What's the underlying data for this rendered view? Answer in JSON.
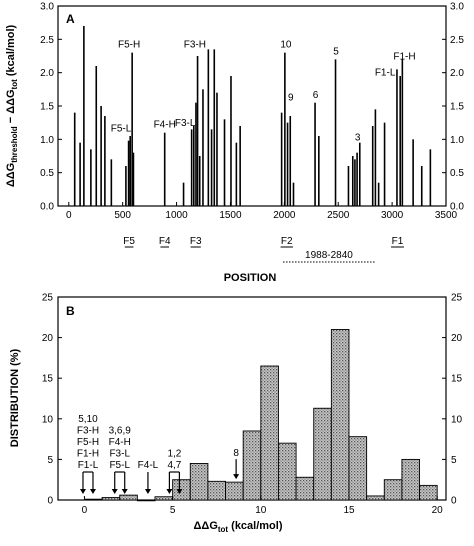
{
  "chart_data": [
    {
      "panel_label": "A",
      "type": "bar",
      "xlabel": "POSITION",
      "ylabel_parts": [
        "ΔΔG",
        "threshold",
        " − ΔΔG",
        "tot",
        " (kcal/mol)"
      ],
      "xlim": [
        -100,
        3500
      ],
      "ylim": [
        0,
        3.0
      ],
      "x_ticks": [
        "0",
        "500",
        "1000",
        "1500",
        "2000",
        "2500",
        "3000",
        "3500"
      ],
      "y_ticks": [
        "0.0",
        "0.5",
        "1.0",
        "1.5",
        "2.0",
        "2.5",
        "3.0"
      ],
      "grid": false,
      "points": [
        {
          "x": 55,
          "y": 1.4
        },
        {
          "x": 105,
          "y": 0.95
        },
        {
          "x": 140,
          "y": 2.7
        },
        {
          "x": 205,
          "y": 0.85
        },
        {
          "x": 255,
          "y": 2.1
        },
        {
          "x": 300,
          "y": 1.5
        },
        {
          "x": 335,
          "y": 1.35
        },
        {
          "x": 395,
          "y": 0.7
        },
        {
          "x": 530,
          "y": 0.6
        },
        {
          "x": 555,
          "y": 0.98
        },
        {
          "x": 570,
          "y": 1.05
        },
        {
          "x": 588,
          "y": 2.3
        },
        {
          "x": 600,
          "y": 0.8
        },
        {
          "x": 890,
          "y": 1.1
        },
        {
          "x": 1065,
          "y": 0.35
        },
        {
          "x": 1140,
          "y": 1.15
        },
        {
          "x": 1160,
          "y": 1.2
        },
        {
          "x": 1180,
          "y": 1.55
        },
        {
          "x": 1195,
          "y": 2.25
        },
        {
          "x": 1215,
          "y": 0.75
        },
        {
          "x": 1245,
          "y": 1.75
        },
        {
          "x": 1295,
          "y": 2.35
        },
        {
          "x": 1325,
          "y": 1.15
        },
        {
          "x": 1350,
          "y": 2.35
        },
        {
          "x": 1375,
          "y": 1.7
        },
        {
          "x": 1445,
          "y": 1.3
        },
        {
          "x": 1505,
          "y": 1.95
        },
        {
          "x": 1555,
          "y": 0.95
        },
        {
          "x": 1590,
          "y": 1.2
        },
        {
          "x": 1975,
          "y": 1.4
        },
        {
          "x": 2005,
          "y": 2.3
        },
        {
          "x": 2030,
          "y": 1.25
        },
        {
          "x": 2055,
          "y": 1.35
        },
        {
          "x": 2085,
          "y": 0.35
        },
        {
          "x": 2285,
          "y": 1.55
        },
        {
          "x": 2320,
          "y": 1.05
        },
        {
          "x": 2475,
          "y": 2.2
        },
        {
          "x": 2595,
          "y": 0.6
        },
        {
          "x": 2635,
          "y": 0.75
        },
        {
          "x": 2655,
          "y": 0.7
        },
        {
          "x": 2675,
          "y": 0.8
        },
        {
          "x": 2700,
          "y": 0.95
        },
        {
          "x": 2820,
          "y": 1.2
        },
        {
          "x": 2845,
          "y": 1.45
        },
        {
          "x": 2875,
          "y": 0.35
        },
        {
          "x": 2930,
          "y": 1.25
        },
        {
          "x": 3045,
          "y": 2.05
        },
        {
          "x": 3075,
          "y": 1.95
        },
        {
          "x": 3095,
          "y": 2.2
        },
        {
          "x": 3195,
          "y": 1.0
        },
        {
          "x": 3275,
          "y": 0.6
        },
        {
          "x": 3355,
          "y": 0.85
        }
      ],
      "annotations": [
        {
          "text": "F5-H",
          "x": 560,
          "y": 2.38
        },
        {
          "text": "F5-L",
          "x": 485,
          "y": 1.12
        },
        {
          "text": "F4-H",
          "x": 890,
          "y": 1.18
        },
        {
          "text": "F3-H",
          "x": 1170,
          "y": 2.38
        },
        {
          "text": "F3-L",
          "x": 1080,
          "y": 1.2
        },
        {
          "text": "10",
          "x": 2015,
          "y": 2.38
        },
        {
          "text": "9",
          "x": 2060,
          "y": 1.58
        },
        {
          "text": "6",
          "x": 2290,
          "y": 1.62
        },
        {
          "text": "5",
          "x": 2480,
          "y": 2.27
        },
        {
          "text": "3",
          "x": 2680,
          "y": 0.98
        },
        {
          "text": "F1-L",
          "x": 2935,
          "y": 1.96
        },
        {
          "text": "F1-H",
          "x": 3115,
          "y": 2.2
        }
      ],
      "fragments": [
        {
          "label": "F5",
          "start": 520,
          "end": 600
        },
        {
          "label": "F4",
          "start": 850,
          "end": 930
        },
        {
          "label": "F3",
          "start": 1130,
          "end": 1225
        },
        {
          "label": "F2",
          "start": 1965,
          "end": 2080
        },
        {
          "label": "F1",
          "start": 2990,
          "end": 3110
        }
      ],
      "range_label": {
        "text": "1988-2840",
        "start": 1988,
        "end": 2840
      }
    },
    {
      "panel_label": "B",
      "type": "bar",
      "xlabel_parts": [
        "ΔΔG",
        "tot",
        " (kcal/mol)"
      ],
      "ylabel": "DISTRIBUTION (%)",
      "xlim": [
        -1.5,
        20.5
      ],
      "ylim": [
        0,
        25
      ],
      "x_ticks": [
        "0",
        "5",
        "10",
        "15",
        "20"
      ],
      "y_ticks": [
        "0",
        "5",
        "10",
        "15",
        "20",
        "25"
      ],
      "bin_width": 1,
      "grid": false,
      "x": [
        0,
        1,
        2,
        3,
        4,
        5,
        6,
        7,
        8,
        9,
        10,
        11,
        12,
        13,
        14,
        15,
        16,
        17,
        18,
        19
      ],
      "values": [
        0.1,
        0.3,
        0.6,
        0.0,
        0.4,
        2.5,
        4.5,
        2.3,
        2.2,
        8.5,
        16.5,
        7.0,
        2.8,
        11.3,
        21.0,
        7.8,
        0.5,
        2.5,
        5.0,
        1.8
      ],
      "annotations": [
        {
          "lines": [
            "5,10",
            "F3-H",
            "F5-H",
            "F1-H",
            "F1-L"
          ],
          "x": 0.2
        },
        {
          "lines": [
            "3,6,9",
            "F4-H",
            "F3-L",
            "F5-L"
          ],
          "x": 2.0
        },
        {
          "lines": [
            "F4-L"
          ],
          "x": 3.6
        },
        {
          "lines": [
            "1,2",
            "4,7"
          ],
          "x": 5.1
        },
        {
          "lines": [
            "8"
          ],
          "x": 8.6
        }
      ]
    }
  ]
}
